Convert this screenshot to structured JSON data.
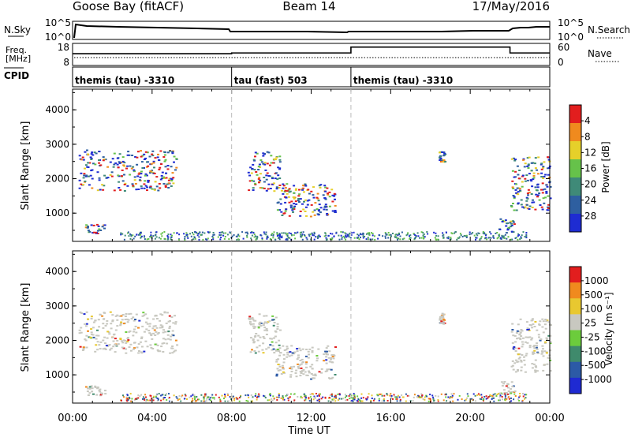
{
  "chart_data": {
    "type": "heatmap",
    "title_left": "Goose Bay (fitACF)",
    "title_center": "Beam 14",
    "title_right": "17/May/2016",
    "time_ticks": [
      "00:00",
      "04:00",
      "08:00",
      "12:00",
      "16:00",
      "20:00",
      "00:00"
    ],
    "xlabel": "Time UT",
    "noise_panel": {
      "left_label": "N.Sky",
      "right_label": "N.Search",
      "left_ticks": [
        "10^5",
        "10^0"
      ],
      "right_ticks": [
        "10^5",
        "10^0"
      ]
    },
    "freq_panel": {
      "left_label_line1": "Freq.",
      "left_label_line2": "[MHz]",
      "right_label": "Nave",
      "left_ticks": [
        "18",
        "8"
      ],
      "right_ticks": [
        "60",
        "0"
      ],
      "nave_steps": [
        {
          "from_hour": 0,
          "to_hour": 8,
          "value": 32
        },
        {
          "from_hour": 8,
          "to_hour": 14,
          "value": 34
        },
        {
          "from_hour": 14,
          "to_hour": 22,
          "value": 50
        },
        {
          "from_hour": 22,
          "to_hour": 24,
          "value": 34
        }
      ]
    },
    "cpid_panel": {
      "label": "CPID",
      "segments": [
        {
          "start_hour": 0,
          "label": "themis (tau) -3310"
        },
        {
          "start_hour": 8,
          "label": "tau (fast) 503"
        },
        {
          "start_hour": 14,
          "label": "themis (tau) -3310"
        }
      ]
    },
    "power_panel": {
      "ylabel": "Slant Range [km]",
      "yticks": [
        "1000",
        "2000",
        "3000",
        "4000"
      ],
      "ylim": [
        180,
        4600
      ],
      "colorbar_label": "Power [dB]",
      "colorbar_ticks": [
        "4",
        "8",
        "12",
        "16",
        "20",
        "24",
        "28"
      ],
      "colorbar_colors": [
        "#1e2cd2",
        "#2e5fa0",
        "#3f8a78",
        "#66c24a",
        "#e6d02a",
        "#f08a1e",
        "#e21e1e"
      ]
    },
    "velocity_panel": {
      "ylabel": "Slant Range [km]",
      "yticks": [
        "1000",
        "2000",
        "3000",
        "4000"
      ],
      "ylim": [
        180,
        4600
      ],
      "colorbar_label": "Velocity [m s⁻¹]",
      "colorbar_ticks": [
        "1000",
        "500",
        "100",
        "25",
        "-25",
        "-100",
        "-500",
        "-1000"
      ],
      "colorbar_colors": [
        "#1f2ad2",
        "#2c5aa6",
        "#3f8a6c",
        "#6ccc3c",
        "#c8c8c0",
        "#e8c830",
        "#f08a1e",
        "#e21e1e"
      ]
    },
    "echo_regions": [
      {
        "t0": 0.3,
        "t1": 5.2,
        "r0": 1650,
        "r1": 2850
      },
      {
        "t0": 8.8,
        "t1": 10.4,
        "r0": 1650,
        "r1": 2800
      },
      {
        "t0": 10.2,
        "t1": 13.2,
        "r0": 900,
        "r1": 1900
      },
      {
        "t0": 0.6,
        "t1": 1.6,
        "r0": 420,
        "r1": 700
      },
      {
        "t0": 21.4,
        "t1": 22.2,
        "r0": 450,
        "r1": 850
      },
      {
        "t0": 22.0,
        "t1": 24.0,
        "r0": 1100,
        "r1": 2650
      },
      {
        "t0": 18.4,
        "t1": 18.7,
        "r0": 2500,
        "r1": 2800
      }
    ]
  }
}
